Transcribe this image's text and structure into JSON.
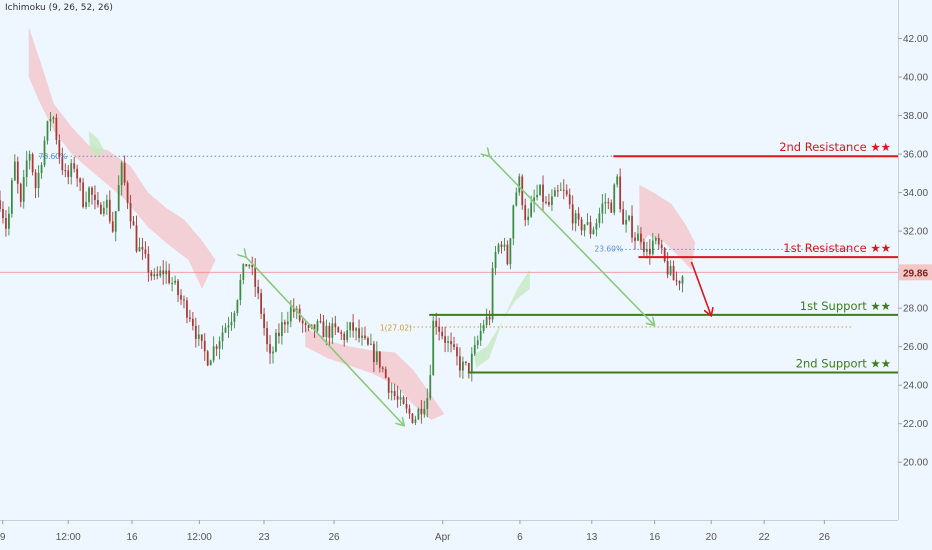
{
  "indicator_label": "Ichimoku (9, 26, 52, 26)",
  "colors": {
    "background": "#eef7ff",
    "candle_up": "#3d8a43",
    "candle_down": "#a83a36",
    "resistance": "#e0151a",
    "support": "#3f7a1d",
    "arrow_green": "#8cc97a",
    "arrow_red": "#e0151a",
    "cloud_red": "#f3c6cb",
    "cloud_green": "#c5e8c0",
    "price_line": "#ef7f7f",
    "fib": "#5b8fc9",
    "fib_orange": "#d89a2c",
    "axis_text": "#555555"
  },
  "chart_data": {
    "type": "candlestick",
    "title": "",
    "xlabel": "",
    "ylabel": "",
    "y_axis_side": "right",
    "ylim": [
      17.0,
      44.0
    ],
    "y_ticks": [
      20.0,
      22.0,
      24.0,
      26.0,
      28.0,
      30.0,
      32.0,
      34.0,
      36.0,
      38.0,
      40.0,
      42.0
    ],
    "y_tick_labels": [
      "20.00",
      "22.00",
      "24.00",
      "26.00",
      "28.00",
      "30.00",
      "32.00",
      "34.00",
      "36.00",
      "38.00",
      "40.00",
      "42.00"
    ],
    "x_range": [
      0,
      100
    ],
    "x_ticks": [
      {
        "x": 0.3,
        "label": "9"
      },
      {
        "x": 7.6,
        "label": "12:00"
      },
      {
        "x": 14.7,
        "label": "16"
      },
      {
        "x": 22.2,
        "label": "12:00"
      },
      {
        "x": 29.4,
        "label": "23"
      },
      {
        "x": 37.2,
        "label": "26"
      },
      {
        "x": 49.3,
        "label": "Apr"
      },
      {
        "x": 57.9,
        "label": "6"
      },
      {
        "x": 65.9,
        "label": "13"
      },
      {
        "x": 72.9,
        "label": "16"
      },
      {
        "x": 79.2,
        "label": "20"
      },
      {
        "x": 85.1,
        "label": "22"
      },
      {
        "x": 91.8,
        "label": "26"
      }
    ],
    "price_anchors": [
      [
        0,
        33.6
      ],
      [
        0.8,
        32.0
      ],
      [
        1.6,
        35.6
      ],
      [
        2.3,
        33.2
      ],
      [
        3.2,
        36.4
      ],
      [
        4.0,
        34.2
      ],
      [
        5.0,
        36.8
      ],
      [
        5.8,
        38.3
      ],
      [
        6.6,
        36.0
      ],
      [
        7.4,
        34.6
      ],
      [
        8.3,
        35.5
      ],
      [
        9.2,
        33.6
      ],
      [
        10.0,
        34.2
      ],
      [
        10.8,
        32.9
      ],
      [
        11.7,
        33.8
      ],
      [
        12.6,
        32.0
      ],
      [
        13.5,
        35.3
      ],
      [
        14.3,
        33.5
      ],
      [
        15.2,
        31.3
      ],
      [
        16.2,
        30.4
      ],
      [
        17.2,
        29.4
      ],
      [
        18.3,
        30.0
      ],
      [
        19.3,
        29.2
      ],
      [
        20.3,
        28.3
      ],
      [
        21.3,
        27.6
      ],
      [
        22.3,
        26.0
      ],
      [
        23.2,
        25.4
      ],
      [
        24.1,
        26.2
      ],
      [
        25.0,
        27.0
      ],
      [
        25.9,
        27.7
      ],
      [
        26.8,
        29.4
      ],
      [
        27.6,
        30.6
      ],
      [
        28.4,
        29.2
      ],
      [
        29.2,
        27.6
      ],
      [
        30.0,
        25.2
      ],
      [
        30.8,
        26.4
      ],
      [
        31.7,
        27.4
      ],
      [
        32.5,
        28.0
      ],
      [
        33.4,
        27.4
      ],
      [
        34.3,
        26.6
      ],
      [
        35.2,
        27.0
      ],
      [
        36.2,
        26.8
      ],
      [
        37.2,
        26.8
      ],
      [
        38.2,
        26.5
      ],
      [
        39.2,
        27.0
      ],
      [
        40.2,
        26.3
      ],
      [
        41.2,
        25.8
      ],
      [
        42.2,
        25.3
      ],
      [
        43.2,
        24.1
      ],
      [
        44.2,
        23.2
      ],
      [
        45.2,
        22.6
      ],
      [
        46.2,
        22.3
      ],
      [
        47.0,
        23.0
      ],
      [
        47.7,
        23.5
      ],
      [
        48.3,
        27.6
      ],
      [
        48.9,
        27.0
      ],
      [
        49.7,
        26.3
      ],
      [
        50.5,
        25.6
      ],
      [
        51.3,
        25.0
      ],
      [
        52.1,
        24.8
      ],
      [
        52.9,
        25.8
      ],
      [
        53.8,
        27.2
      ],
      [
        54.5,
        27.5
      ],
      [
        55.0,
        30.6
      ],
      [
        55.8,
        31.6
      ],
      [
        56.5,
        30.4
      ],
      [
        57.2,
        33.6
      ],
      [
        57.8,
        34.6
      ],
      [
        58.7,
        32.3
      ],
      [
        59.4,
        33.6
      ],
      [
        60.2,
        34.0
      ],
      [
        60.9,
        33.2
      ],
      [
        61.6,
        33.6
      ],
      [
        62.3,
        34.0
      ],
      [
        63.0,
        33.9
      ],
      [
        63.7,
        32.9
      ],
      [
        64.4,
        32.2
      ],
      [
        65.1,
        32.4
      ],
      [
        65.8,
        32.0
      ],
      [
        66.5,
        32.6
      ],
      [
        67.3,
        33.6
      ],
      [
        68.0,
        33.2
      ],
      [
        68.7,
        34.8
      ],
      [
        69.4,
        32.2
      ],
      [
        70.1,
        32.4
      ],
      [
        70.8,
        31.6
      ],
      [
        71.4,
        31.8
      ],
      [
        72.0,
        30.8
      ],
      [
        72.7,
        31.4
      ],
      [
        73.3,
        31.2
      ],
      [
        73.9,
        30.4
      ],
      [
        74.5,
        29.9
      ],
      [
        75.2,
        29.3
      ],
      [
        76.0,
        29.7
      ]
    ],
    "levels": [
      {
        "name": "2nd Resistance",
        "label": "2nd Resistance ★★",
        "value": 35.89,
        "value_label": "35.89",
        "kind": "resistance",
        "x_start": 68.3
      },
      {
        "name": "1st Resistance",
        "label": "1st Resistance ★★",
        "value": 30.65,
        "value_label": "30.65",
        "kind": "resistance",
        "x_start": 71.1
      },
      {
        "name": "1st Support",
        "label": "1st Support ★★",
        "value": 27.65,
        "value_label": "27.65",
        "kind": "support",
        "x_start": 47.8
      },
      {
        "name": "2nd Support",
        "label": "2nd Support ★★",
        "value": 24.66,
        "value_label": "24.66",
        "kind": "support",
        "x_start": 52.1
      }
    ],
    "current_price": {
      "value": 29.86,
      "label": "29.86"
    },
    "annotations": [
      {
        "text": "78.60%",
        "x": 4.3,
        "y": 35.89
      },
      {
        "text": "23.60%",
        "x": 66.2,
        "y": 31.1
      },
      {
        "text": "1(27.02)",
        "x": 42.3,
        "y": 27.0
      }
    ],
    "fib_lines": [
      {
        "value": 35.89,
        "x_start": 4.3,
        "x_end": 68.3,
        "style": "dotted",
        "color": "fib"
      },
      {
        "value": 31.05,
        "x_start": 68.3,
        "x_end": 95.0,
        "style": "dotted",
        "color": "fib"
      },
      {
        "value": 27.02,
        "x_start": 45.6,
        "x_end": 95.0,
        "style": "dotted",
        "color": "fib_orange"
      }
    ],
    "green_arrows": [
      {
        "from": [
          27.4,
          30.65
        ],
        "to": [
          45.0,
          21.9
        ]
      },
      {
        "from": [
          54.5,
          35.89
        ],
        "to": [
          72.9,
          27.1
        ]
      }
    ],
    "red_arrow": {
      "from": [
        77.0,
        30.4
      ],
      "to": [
        79.2,
        27.6
      ]
    },
    "cloud_bands": [
      {
        "color": "cloud_red",
        "points": [
          [
            3.2,
            42.6
          ],
          [
            4.5,
            40.8
          ],
          [
            6.0,
            38.6
          ],
          [
            8.0,
            37.4
          ],
          [
            10.0,
            36.4
          ],
          [
            12.0,
            36.2
          ],
          [
            14.5,
            35.4
          ],
          [
            16.5,
            34.0
          ],
          [
            18.5,
            33.2
          ],
          [
            20.5,
            32.6
          ],
          [
            22.5,
            31.5
          ],
          [
            24.0,
            30.5
          ],
          [
            22.5,
            29.0
          ],
          [
            21.0,
            30.5
          ],
          [
            19.0,
            31.2
          ],
          [
            16.5,
            32.2
          ],
          [
            14.0,
            33.6
          ],
          [
            12.0,
            34.4
          ],
          [
            10.0,
            35.2
          ],
          [
            8.0,
            36.0
          ],
          [
            6.0,
            37.2
          ],
          [
            4.5,
            38.6
          ],
          [
            3.2,
            40.0
          ]
        ]
      },
      {
        "color": "cloud_red",
        "points": [
          [
            34.0,
            27.0
          ],
          [
            36.5,
            26.3
          ],
          [
            39.0,
            26.0
          ],
          [
            41.5,
            25.8
          ],
          [
            44.0,
            25.7
          ],
          [
            46.0,
            24.8
          ],
          [
            48.0,
            23.5
          ],
          [
            49.5,
            22.5
          ],
          [
            48.0,
            22.2
          ],
          [
            46.0,
            23.0
          ],
          [
            44.0,
            24.0
          ],
          [
            41.5,
            24.6
          ],
          [
            39.0,
            25.0
          ],
          [
            36.5,
            25.4
          ],
          [
            34.0,
            26.0
          ]
        ]
      },
      {
        "color": "cloud_green",
        "points": [
          [
            52.8,
            25.6
          ],
          [
            54.2,
            26.0
          ],
          [
            55.8,
            27.2
          ],
          [
            57.6,
            29.0
          ],
          [
            59.0,
            30.0
          ],
          [
            59.0,
            29.0
          ],
          [
            57.4,
            28.4
          ],
          [
            56.0,
            27.4
          ],
          [
            54.5,
            25.4
          ],
          [
            53.0,
            24.9
          ]
        ]
      },
      {
        "color": "cloud_red",
        "points": [
          [
            71.2,
            34.4
          ],
          [
            72.8,
            34.0
          ],
          [
            74.8,
            33.4
          ],
          [
            76.4,
            32.3
          ],
          [
            77.4,
            31.4
          ],
          [
            77.0,
            30.0
          ],
          [
            75.8,
            30.6
          ],
          [
            74.0,
            31.4
          ],
          [
            72.2,
            31.8
          ],
          [
            71.2,
            31.2
          ]
        ]
      },
      {
        "color": "cloud_green",
        "points": [
          [
            9.9,
            37.2
          ],
          [
            10.9,
            36.8
          ],
          [
            11.6,
            36.2
          ],
          [
            10.8,
            35.8
          ],
          [
            10.0,
            36.2
          ]
        ]
      }
    ]
  }
}
